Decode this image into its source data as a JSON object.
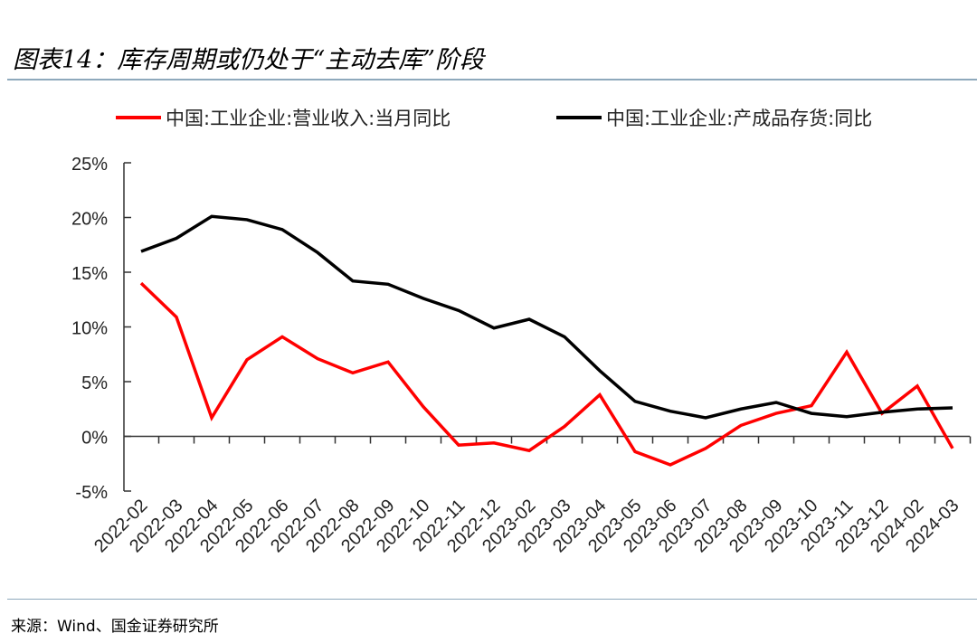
{
  "title": "图表14：库存周期或仍处于“主动去库”阶段",
  "source": "来源：Wind、国金证券研究所",
  "chart_data": {
    "type": "line",
    "title": "图表14：库存周期或仍处于“主动去库”阶段",
    "xlabel": "",
    "ylabel": "",
    "ylim": [
      -5,
      25
    ],
    "yticks": [
      "-5%",
      "0%",
      "5%",
      "10%",
      "15%",
      "20%",
      "25%"
    ],
    "ytick_values": [
      -5,
      0,
      5,
      10,
      15,
      20,
      25
    ],
    "grid": false,
    "legend_position": "top",
    "categories": [
      "2022-02",
      "2022-03",
      "2022-04",
      "2022-05",
      "2022-06",
      "2022-07",
      "2022-08",
      "2022-09",
      "2022-10",
      "2022-11",
      "2022-12",
      "2023-02",
      "2023-03",
      "2023-04",
      "2023-05",
      "2023-06",
      "2023-07",
      "2023-08",
      "2023-09",
      "2023-10",
      "2023-11",
      "2023-12",
      "2024-02",
      "2024-03"
    ],
    "series": [
      {
        "name": "中国:工业企业:营业收入:当月同比",
        "color": "#ff0000",
        "values": [
          14.0,
          10.9,
          1.7,
          7.0,
          9.1,
          7.1,
          5.8,
          6.8,
          2.7,
          -0.8,
          -0.6,
          -1.3,
          0.9,
          3.8,
          -1.4,
          -2.6,
          -1.1,
          1.0,
          2.1,
          2.8,
          7.7,
          2.1,
          4.6,
          -1.1
        ]
      },
      {
        "name": "中国:工业企业:产成品存货:同比",
        "color": "#000000",
        "values": [
          16.9,
          18.1,
          20.1,
          19.8,
          18.9,
          16.8,
          14.2,
          13.9,
          12.6,
          11.5,
          9.9,
          10.7,
          9.1,
          6.0,
          3.2,
          2.3,
          1.7,
          2.5,
          3.1,
          2.1,
          1.8,
          2.2,
          2.5,
          2.6
        ]
      }
    ]
  }
}
